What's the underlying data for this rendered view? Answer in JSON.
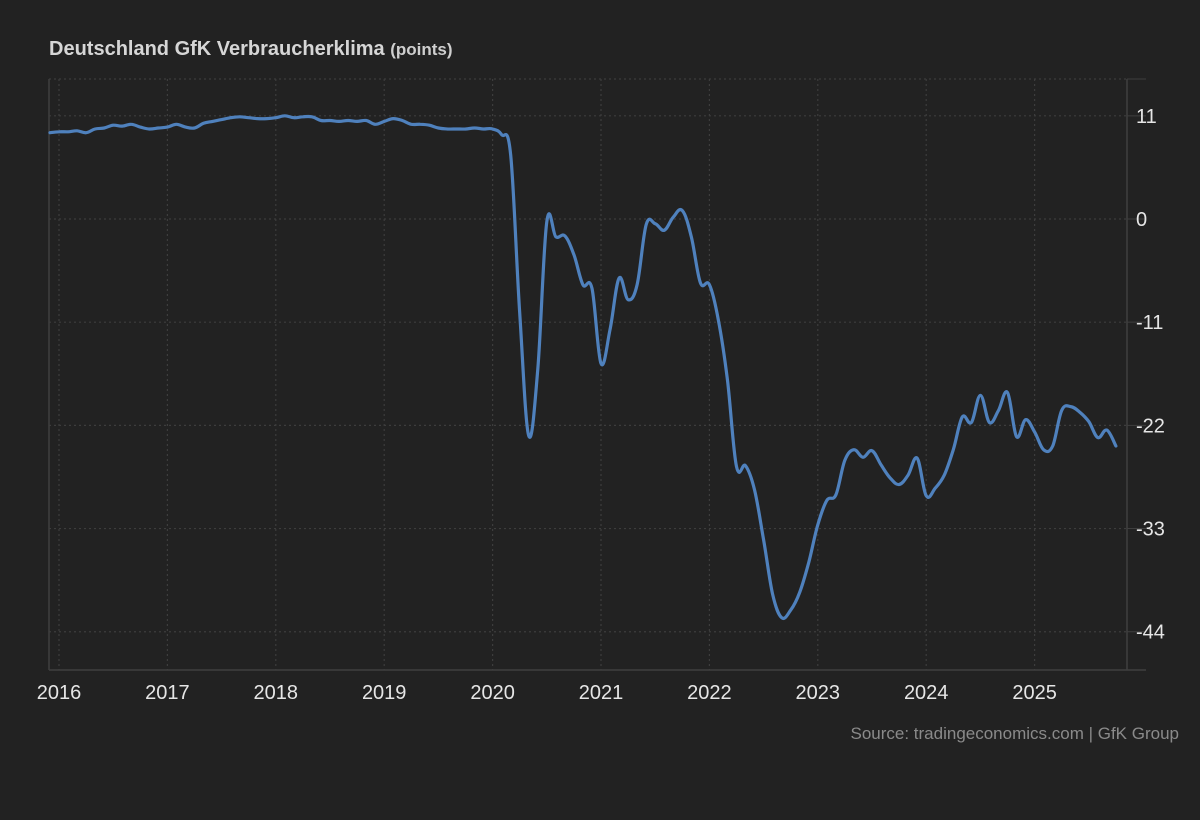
{
  "header": {
    "title": "Deutschland GfK Verbraucherklima",
    "unit": "(points)"
  },
  "footer": {
    "source": "Source: tradingeconomics.com | GfK Group"
  },
  "colors": {
    "background": "#222222",
    "line": "#4f81bd",
    "grid": "#3d3d3d",
    "axis": "#3f3f3f",
    "text": "#e6e6e6"
  },
  "chart_data": {
    "type": "line",
    "title": "Deutschland GfK Verbraucherklima",
    "subtitle": "(points)",
    "xlabel": "",
    "ylabel": "",
    "y_axis_position": "right",
    "ylim": [
      -48,
      15
    ],
    "yticks": [
      11,
      0,
      -11,
      -22,
      -33,
      -44
    ],
    "xticks": [
      "2016",
      "2017",
      "2018",
      "2019",
      "2020",
      "2021",
      "2022",
      "2023",
      "2024",
      "2025"
    ],
    "grid": true,
    "legend": null,
    "series": [
      {
        "name": "GfK Verbraucherklima",
        "frequency": "monthly",
        "x": [
          "2015-12",
          "2016-01",
          "2016-02",
          "2016-03",
          "2016-04",
          "2016-05",
          "2016-06",
          "2016-07",
          "2016-08",
          "2016-09",
          "2016-10",
          "2016-11",
          "2016-12",
          "2017-01",
          "2017-02",
          "2017-03",
          "2017-04",
          "2017-05",
          "2017-06",
          "2017-07",
          "2017-08",
          "2017-09",
          "2017-10",
          "2017-11",
          "2017-12",
          "2018-01",
          "2018-02",
          "2018-03",
          "2018-04",
          "2018-05",
          "2018-06",
          "2018-07",
          "2018-08",
          "2018-09",
          "2018-10",
          "2018-11",
          "2018-12",
          "2019-01",
          "2019-02",
          "2019-03",
          "2019-04",
          "2019-05",
          "2019-06",
          "2019-07",
          "2019-08",
          "2019-09",
          "2019-10",
          "2019-11",
          "2019-12",
          "2020-01",
          "2020-02",
          "2020-03",
          "2020-04",
          "2020-05",
          "2020-06",
          "2020-07",
          "2020-08",
          "2020-09",
          "2020-10",
          "2020-11",
          "2020-12",
          "2021-01",
          "2021-02",
          "2021-03",
          "2021-04",
          "2021-05",
          "2021-06",
          "2021-07",
          "2021-08",
          "2021-09",
          "2021-10",
          "2021-11",
          "2021-12",
          "2022-01",
          "2022-02",
          "2022-03",
          "2022-04",
          "2022-05",
          "2022-06",
          "2022-07",
          "2022-08",
          "2022-09",
          "2022-10",
          "2022-11",
          "2022-12",
          "2023-01",
          "2023-02",
          "2023-03",
          "2023-04",
          "2023-05",
          "2023-06",
          "2023-07",
          "2023-08",
          "2023-09",
          "2023-10",
          "2023-11",
          "2023-12",
          "2024-01",
          "2024-02",
          "2024-03",
          "2024-04",
          "2024-05",
          "2024-06",
          "2024-07",
          "2024-08",
          "2024-09",
          "2024-10",
          "2024-11",
          "2024-12",
          "2025-01",
          "2025-02",
          "2025-03",
          "2025-04",
          "2025-05",
          "2025-06",
          "2025-07",
          "2025-08",
          "2025-09",
          "2025-10"
        ],
        "values": [
          9.2,
          9.3,
          9.3,
          9.4,
          9.2,
          9.6,
          9.7,
          10.0,
          9.9,
          10.1,
          9.8,
          9.6,
          9.7,
          9.8,
          10.1,
          9.8,
          9.7,
          10.2,
          10.4,
          10.6,
          10.8,
          10.9,
          10.8,
          10.7,
          10.7,
          10.8,
          11.0,
          10.8,
          10.9,
          10.9,
          10.5,
          10.5,
          10.4,
          10.5,
          10.4,
          10.5,
          10.1,
          10.4,
          10.7,
          10.5,
          10.1,
          10.1,
          10.0,
          9.7,
          9.6,
          9.6,
          9.6,
          9.7,
          9.6,
          9.6,
          9.0,
          6.8,
          -10.0,
          -23.1,
          -16.0,
          -0.3,
          -1.9,
          -1.8,
          -3.8,
          -7.0,
          -7.4,
          -15.4,
          -11.8,
          -6.3,
          -8.6,
          -7.0,
          -0.6,
          -0.5,
          -1.2,
          0.2,
          0.9,
          -1.9,
          -6.8,
          -7.0,
          -10.8,
          -17.2,
          -26.4,
          -26.3,
          -28.9,
          -34.2,
          -40.0,
          -42.5,
          -41.7,
          -39.8,
          -36.6,
          -32.6,
          -30.0,
          -29.4,
          -25.7,
          -24.6,
          -25.4,
          -24.7,
          -26.2,
          -27.6,
          -28.3,
          -27.3,
          -25.5,
          -29.5,
          -28.7,
          -27.3,
          -24.6,
          -21.1,
          -21.7,
          -18.8,
          -21.7,
          -20.4,
          -18.5,
          -23.2,
          -21.4,
          -22.7,
          -24.6,
          -24.2,
          -20.4,
          -20.0,
          -20.6,
          -21.6,
          -23.3,
          -22.5,
          -24.2
        ]
      }
    ]
  }
}
